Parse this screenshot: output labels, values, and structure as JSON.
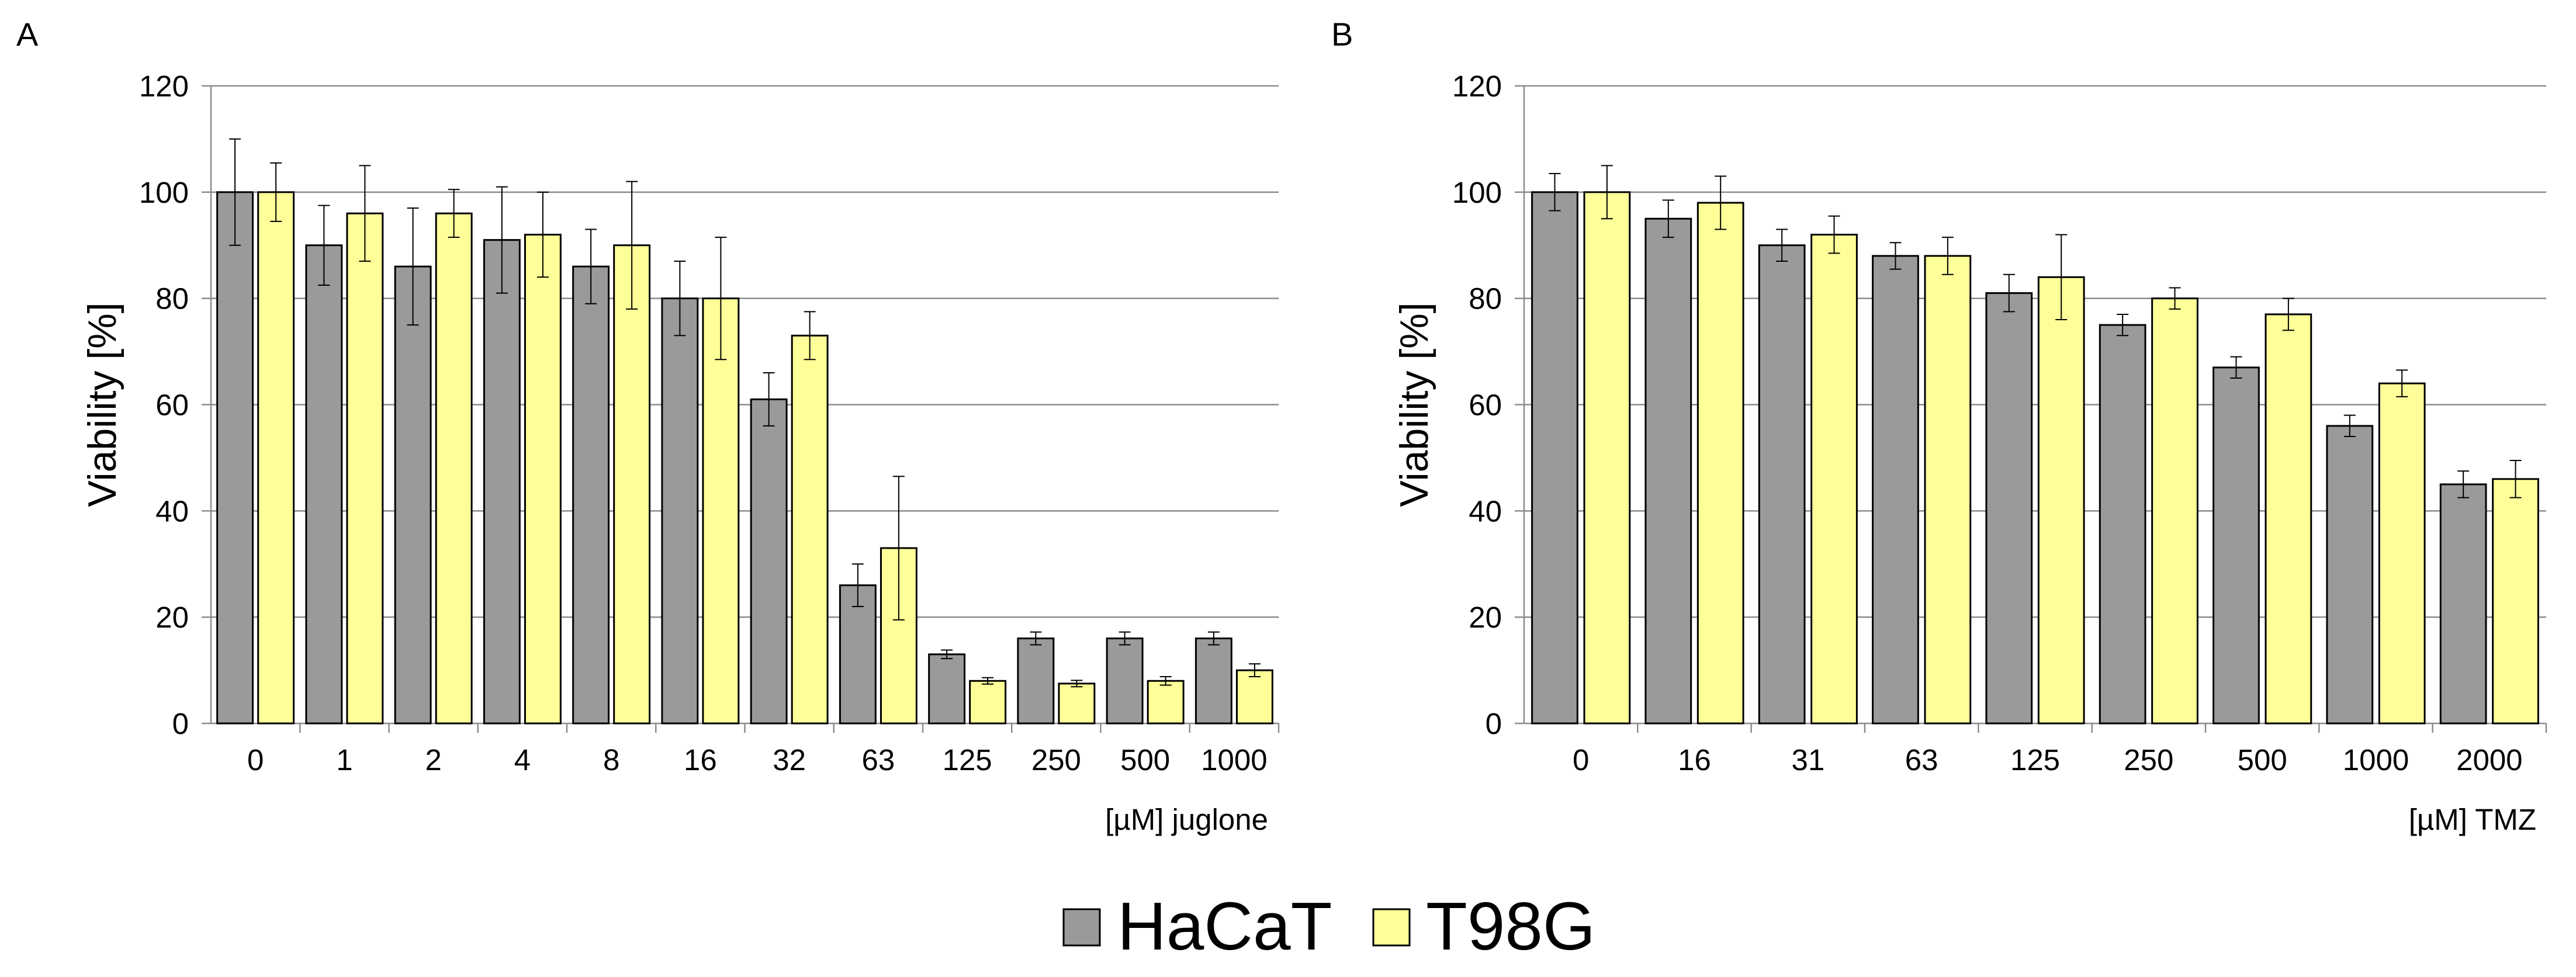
{
  "figure": {
    "legend": [
      {
        "name": "HaCaT",
        "color": "#9a9a9a"
      },
      {
        "name": "T98G",
        "color": "#ffff99"
      }
    ]
  },
  "chart_data": [
    {
      "type": "bar",
      "panel": "A",
      "title": "",
      "xlabel": "[µM] juglone",
      "ylabel": "Viability  [%]",
      "ylim": [
        0,
        120
      ],
      "yticks": [
        0,
        20,
        40,
        60,
        80,
        100,
        120
      ],
      "grid": true,
      "categories": [
        "0",
        "1",
        "2",
        "4",
        "8",
        "16",
        "32",
        "63",
        "125",
        "250",
        "500",
        "1000"
      ],
      "series": [
        {
          "name": "HaCaT",
          "color": "#9a9a9a",
          "values": [
            100,
            90,
            86,
            91,
            86,
            80,
            61,
            26,
            13,
            16,
            16,
            16
          ],
          "errors": [
            10,
            7.5,
            11,
            10,
            7,
            7,
            5,
            4,
            0.8,
            1.2,
            1.2,
            1.2
          ]
        },
        {
          "name": "T98G",
          "color": "#ffff99",
          "values": [
            100,
            96,
            96,
            92,
            90,
            80,
            73,
            33,
            8,
            7.5,
            8,
            10
          ],
          "errors": [
            5.5,
            9,
            4.5,
            8,
            12,
            11.5,
            4.5,
            13.5,
            0.6,
            0.6,
            0.8,
            1.2
          ]
        }
      ]
    },
    {
      "type": "bar",
      "panel": "B",
      "title": "",
      "xlabel": "[µM] TMZ",
      "ylabel": "Viability  [%]",
      "ylim": [
        0,
        120
      ],
      "yticks": [
        0,
        20,
        40,
        60,
        80,
        100,
        120
      ],
      "grid": true,
      "categories": [
        "0",
        "16",
        "31",
        "63",
        "125",
        "250",
        "500",
        "1000",
        "2000"
      ],
      "series": [
        {
          "name": "HaCaT",
          "color": "#9a9a9a",
          "values": [
            100,
            95,
            90,
            88,
            81,
            75,
            67,
            56,
            45
          ],
          "errors": [
            3.5,
            3.5,
            3,
            2.5,
            3.5,
            2,
            2,
            2,
            2.5
          ]
        },
        {
          "name": "T98G",
          "color": "#ffff99",
          "values": [
            100,
            98,
            92,
            88,
            84,
            80,
            77,
            64,
            46
          ],
          "errors": [
            5,
            5,
            3.5,
            3.5,
            8,
            2,
            3,
            2.5,
            3.5
          ]
        }
      ]
    }
  ]
}
